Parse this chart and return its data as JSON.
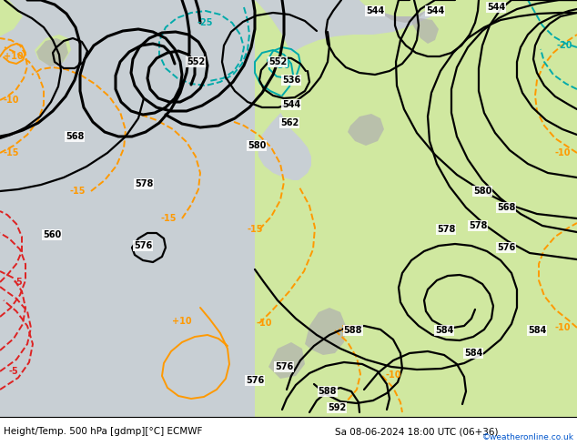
{
  "title_left": "Height/Temp. 500 hPa [gdmp][°C] ECMWF",
  "title_right": "Sa 08-06-2024 18:00 UTC (06+36)",
  "watermark": "©weatheronline.co.uk",
  "ocean_color": "#c8cfd4",
  "land_color_green": "#d0e8a0",
  "land_color_dark": "#b8d888",
  "mountain_color": "#b0b0b0",
  "contour_color": "#000000",
  "orange_color": "#ff9900",
  "red_color": "#dd2222",
  "cyan_color": "#00aaaa",
  "green_iso_color": "#88cc44",
  "watermark_color": "#0055cc",
  "figsize": [
    6.34,
    4.9
  ],
  "dpi": 100,
  "bottom_bar_height": 32
}
